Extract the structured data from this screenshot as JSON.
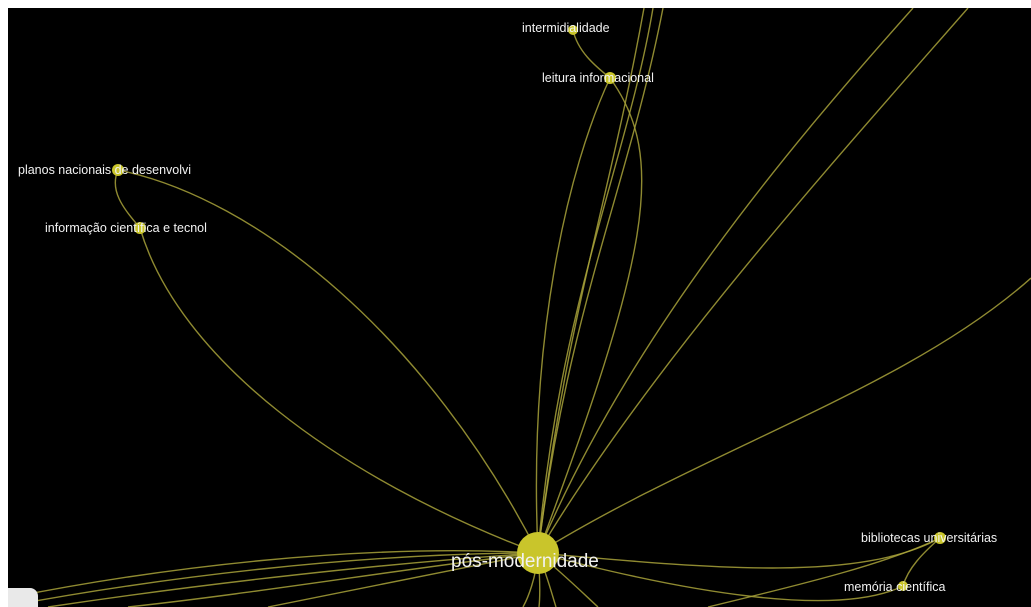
{
  "graph": {
    "center": {
      "label": "pós-modernidade"
    },
    "nodes": [
      {
        "id": "n1",
        "label": "intermidialidade"
      },
      {
        "id": "n2",
        "label": "leitura informacional"
      },
      {
        "id": "n3",
        "label": "planos nacionais de desenvolvi"
      },
      {
        "id": "n4",
        "label": "informação científica e tecnol"
      },
      {
        "id": "n5",
        "label": "bibliotecas universitárias"
      },
      {
        "id": "n6",
        "label": "memória científica"
      }
    ],
    "colors": {
      "background": "#000000",
      "node": "#c9c52b",
      "edge": "#a8a23a",
      "label": "#f2f2f2"
    }
  }
}
